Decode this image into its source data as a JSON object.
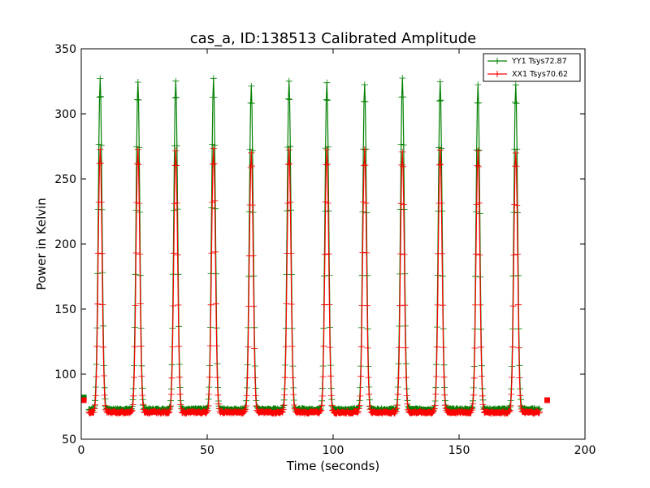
{
  "chart_data": {
    "type": "line",
    "title": "cas_a, ID:138513 Calibrated Amplitude",
    "xlabel": "Time (seconds)",
    "ylabel": "Power in Kelvin",
    "xlim": [
      0,
      200
    ],
    "ylim": [
      50,
      350
    ],
    "xticks": [
      0,
      50,
      100,
      150,
      200
    ],
    "yticks": [
      50,
      100,
      150,
      200,
      250,
      300,
      350
    ],
    "grid": false,
    "legend_position": "top-right",
    "peak_times": [
      7.5,
      22.5,
      37.5,
      52.5,
      67.5,
      82.5,
      97.5,
      112.5,
      127.5,
      142.5,
      157.5,
      172.5
    ],
    "series": [
      {
        "name": "YY1 Tsys72.87",
        "color": "#008000",
        "marker": "+",
        "baseline": 72.87,
        "peaks": [
          327,
          324,
          326,
          327,
          322,
          325,
          324,
          323,
          327,
          324,
          322,
          322
        ],
        "endpoints": [
          [
            1,
            82
          ],
          [
            185,
            80
          ]
        ]
      },
      {
        "name": "XX1 Tsys70.62",
        "color": "#ff0000",
        "marker": "+",
        "baseline": 70.62,
        "peaks": [
          273,
          272,
          271,
          273,
          270,
          272,
          272,
          272,
          271,
          272,
          271,
          270
        ],
        "endpoints": [
          [
            1,
            80
          ],
          [
            185,
            80
          ]
        ]
      }
    ]
  }
}
